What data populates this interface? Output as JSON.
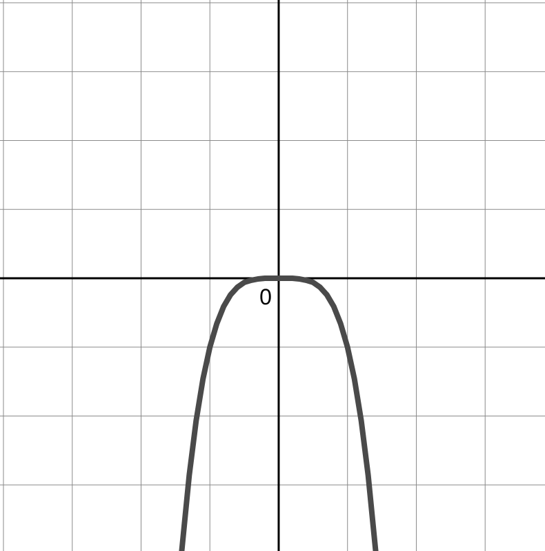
{
  "chart_data": {
    "type": "line",
    "title": "",
    "xlabel": "",
    "ylabel": "",
    "xlim": [
      -4.05,
      3.87
    ],
    "ylim": [
      -3.96,
      4.04
    ],
    "grid": true,
    "gridlines_x": [
      -4,
      -3,
      -2,
      -1,
      1,
      2,
      3
    ],
    "gridlines_y": [
      -3,
      -2,
      -1,
      1,
      2,
      3,
      4
    ],
    "tick_labels": [
      {
        "text": "0",
        "x": 0,
        "y": 0,
        "anchor": "below-left"
      }
    ],
    "series": [
      {
        "color": "#4a4a4a",
        "function": "y = -x^4",
        "x": [
          -1.42,
          -1.3,
          -1.2,
          -1.1,
          -1.0,
          -0.9,
          -0.8,
          -0.7,
          -0.6,
          -0.5,
          -0.4,
          -0.3,
          -0.2,
          -0.1,
          0,
          0.1,
          0.2,
          0.3,
          0.4,
          0.5,
          0.6,
          0.7,
          0.8,
          0.9,
          1.0,
          1.1,
          1.2,
          1.3,
          1.42
        ],
        "y": [
          -4.07,
          -2.86,
          -2.07,
          -1.46,
          -1.0,
          -0.66,
          -0.41,
          -0.24,
          -0.13,
          -0.06,
          -0.03,
          -0.01,
          0,
          0,
          0,
          0,
          0,
          -0.01,
          -0.03,
          -0.06,
          -0.13,
          -0.24,
          -0.41,
          -0.66,
          -1.0,
          -1.46,
          -2.07,
          -2.86,
          -4.07
        ]
      }
    ]
  },
  "colors": {
    "background": "#ffffff",
    "grid": "#8a8a8a",
    "axes": "#000000",
    "curve": "#4a4a4a"
  }
}
